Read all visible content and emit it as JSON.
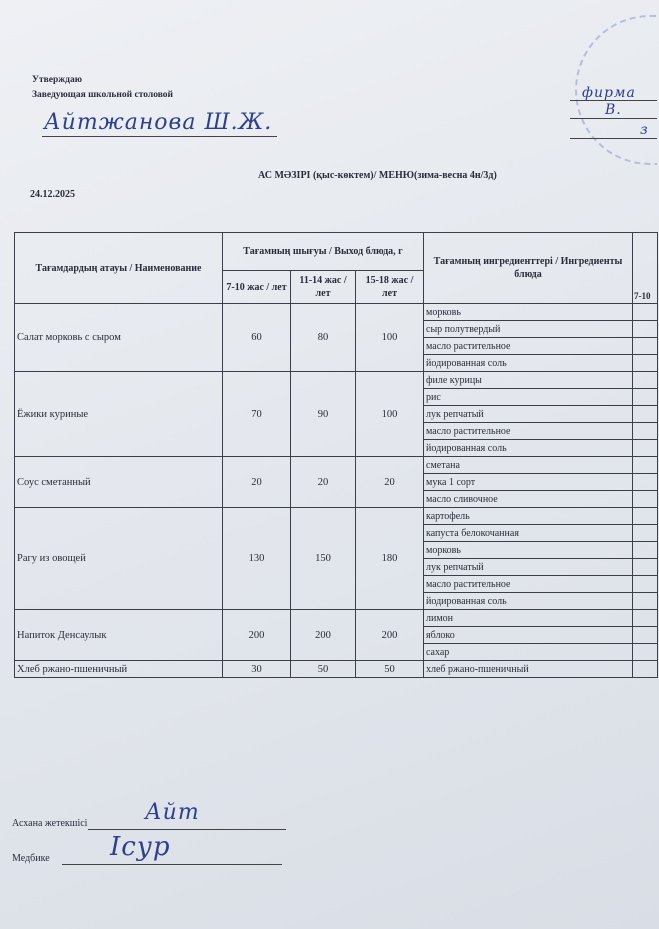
{
  "header": {
    "approve": "Утверждаю",
    "position": "Заведующая школьной столовой",
    "signature": "Айтжанова Ш.Ж.",
    "right_sig_1": "фирма",
    "right_sig_2": "В.",
    "right_sig_3": "з"
  },
  "title": "АС  МӘЗІРІ (қыс-көктем)/ МЕНЮ(зима-весна 4н/3д)",
  "date": "24.12.2025",
  "table": {
    "col_name": "Тағамдардың атауы / Наименование",
    "col_output": "Тағамның шығуы / Выход блюда, г",
    "col_ages": [
      "7-10 жас / лет",
      "11-14 жас / лет",
      "15-18 жас / лет"
    ],
    "col_ingredients": "Тағамның ингредиенттері / Ингредиенты блюда",
    "col_extra": "7-10",
    "rows": [
      {
        "name": "Салат морковь с сыром",
        "v": [
          "60",
          "80",
          "100"
        ],
        "ing": [
          "морковь",
          "сыр полутвердый",
          "масло растительное",
          "йодированная соль"
        ]
      },
      {
        "name": "Ёжики куриные",
        "v": [
          "70",
          "90",
          "100"
        ],
        "ing": [
          "филе курицы",
          "рис",
          "лук репчатый",
          "масло растительное",
          "йодированная соль"
        ]
      },
      {
        "name": "Соус сметанный",
        "v": [
          "20",
          "20",
          "20"
        ],
        "ing": [
          "сметана",
          "мука 1 сорт",
          "масло сливочное"
        ]
      },
      {
        "name": "Рагу из овощей",
        "v": [
          "130",
          "150",
          "180"
        ],
        "ing": [
          "картофель",
          "капуста белокочанная",
          "морковь",
          "лук репчатый",
          "масло растительное",
          "йодированная соль"
        ]
      },
      {
        "name": "Напиток Денсаулык",
        "v": [
          "200",
          "200",
          "200"
        ],
        "ing": [
          "лимон",
          "яблоко",
          "сахар"
        ]
      },
      {
        "name": "Хлеб ржано-пшеничный",
        "v": [
          "30",
          "50",
          "50"
        ],
        "ing": [
          "хлеб ржано-пшеничный"
        ]
      }
    ]
  },
  "footer": {
    "chef_label": "Асхана жетекшісі",
    "chef_sig": "Айт",
    "nurse_label": "Медбике",
    "nurse_sig": "Ісур"
  }
}
